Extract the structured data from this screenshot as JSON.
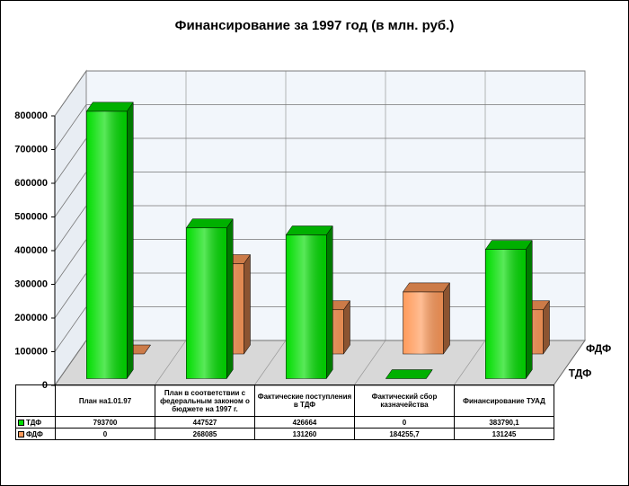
{
  "chart_data": {
    "type": "bar3d",
    "title": "Финансирование за 1997 год (в млн. руб.)",
    "categories": [
      "План на1.01.97",
      "План в соответствии с федеральным законом о бюджете на 1997 г.",
      "Фактические поступления в ТДФ",
      "Фактический сбор казначейства",
      "Финансирование ТУАД"
    ],
    "series": [
      {
        "name": "ТДФ",
        "color": "#00dd00",
        "values": [
          793700,
          447527,
          426664,
          0,
          383790.1
        ],
        "value_labels": [
          "793700",
          "447527",
          "426664",
          "0",
          "383790,1"
        ]
      },
      {
        "name": "ФДФ",
        "color": "#ff9a5a",
        "values": [
          0,
          268085,
          131260,
          184255.7,
          131245
        ],
        "value_labels": [
          "0",
          "268085",
          "131260",
          "184255,7",
          "131245"
        ]
      }
    ],
    "ylim": [
      0,
      800000
    ],
    "yticks": [
      0,
      100000,
      200000,
      300000,
      400000,
      500000,
      600000,
      700000,
      800000
    ],
    "grid": true
  }
}
